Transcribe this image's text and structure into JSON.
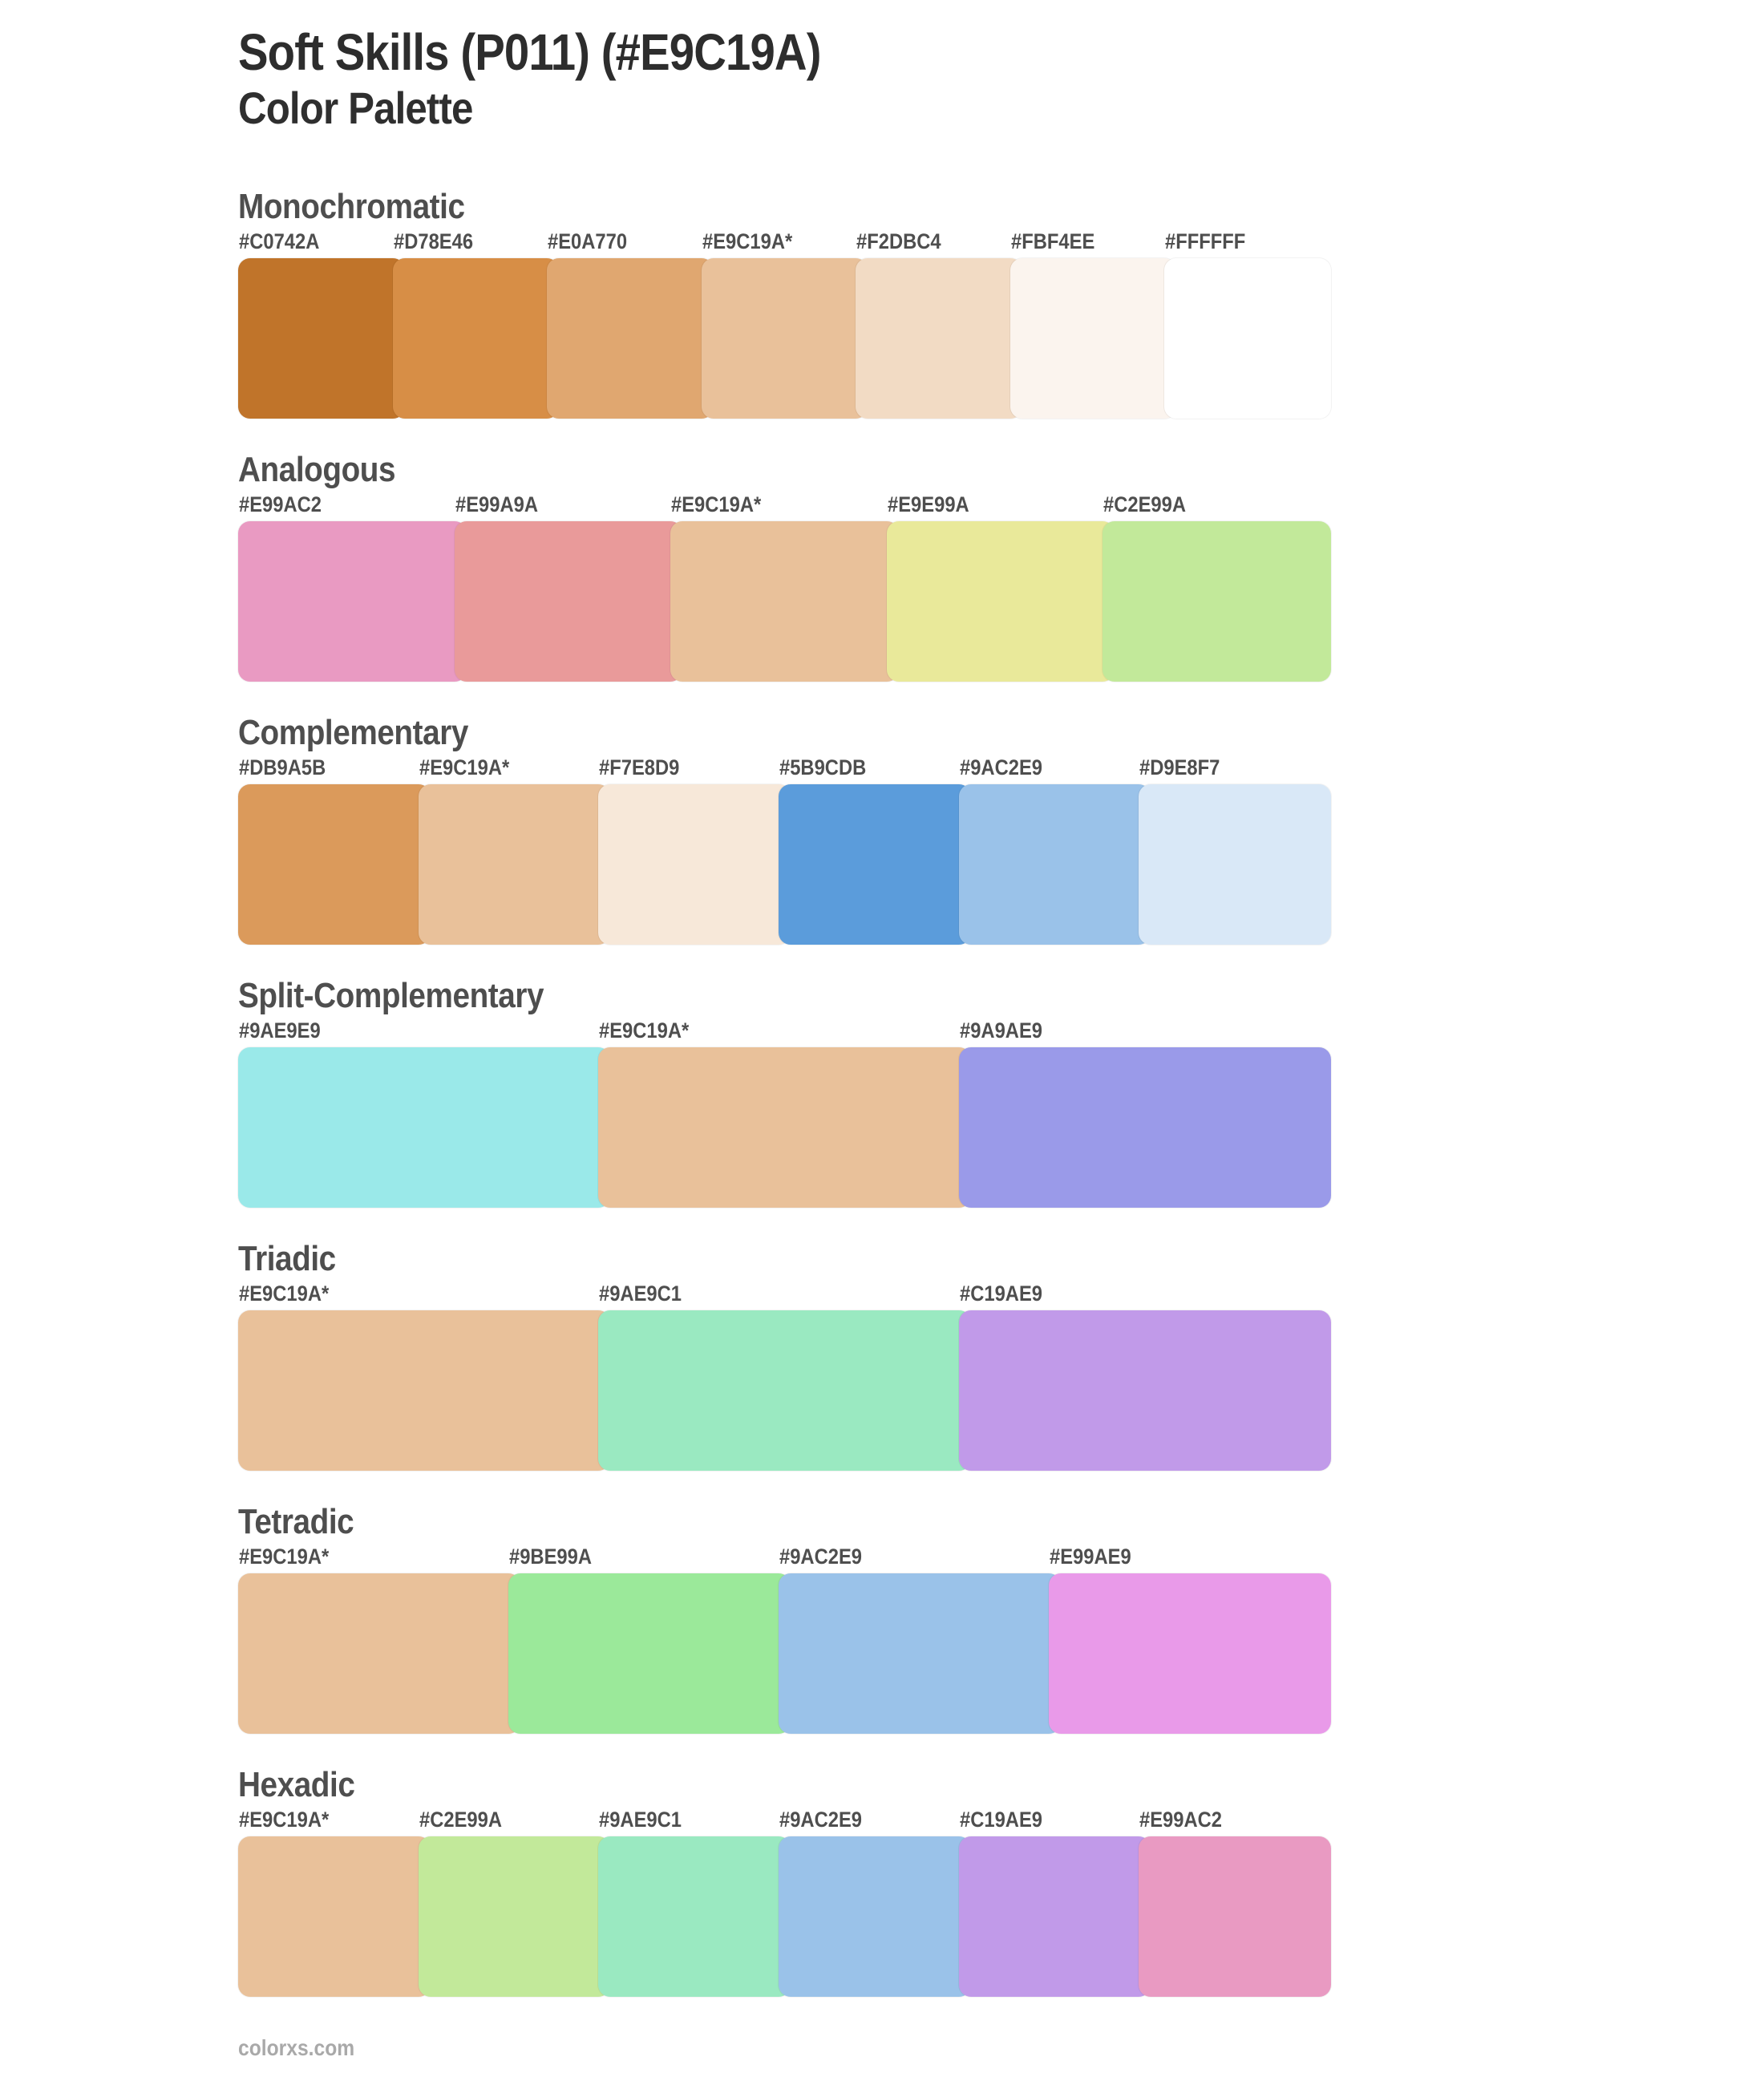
{
  "page": {
    "title": "Soft Skills (P011) (#E9C19A)",
    "subtitle": "Color Palette",
    "footer": "colorxs.com",
    "base_color": "#E9C19A"
  },
  "sections": [
    {
      "name": "Monochromatic",
      "swatches": [
        {
          "label": "#C0742A",
          "color": "#C0742A"
        },
        {
          "label": "#D78E46",
          "color": "#D78E46"
        },
        {
          "label": "#E0A770",
          "color": "#E0A770"
        },
        {
          "label": "#E9C19A*",
          "color": "#E9C19A"
        },
        {
          "label": "#F2DBC4",
          "color": "#F2DBC4"
        },
        {
          "label": "#FBF4EE",
          "color": "#FBF4EE"
        },
        {
          "label": "#FFFFFF",
          "color": "#FFFFFF"
        }
      ]
    },
    {
      "name": "Analogous",
      "swatches": [
        {
          "label": "#E99AC2",
          "color": "#E99AC2"
        },
        {
          "label": "#E99A9A",
          "color": "#E99A9A"
        },
        {
          "label": "#E9C19A*",
          "color": "#E9C19A"
        },
        {
          "label": "#E9E99A",
          "color": "#E9E99A"
        },
        {
          "label": "#C2E99A",
          "color": "#C2E99A"
        }
      ]
    },
    {
      "name": "Complementary",
      "swatches": [
        {
          "label": "#DB9A5B",
          "color": "#DB9A5B"
        },
        {
          "label": "#E9C19A*",
          "color": "#E9C19A"
        },
        {
          "label": "#F7E8D9",
          "color": "#F7E8D9"
        },
        {
          "label": "#5B9CDB",
          "color": "#5B9CDB"
        },
        {
          "label": "#9AC2E9",
          "color": "#9AC2E9"
        },
        {
          "label": "#D9E8F7",
          "color": "#D9E8F7"
        }
      ]
    },
    {
      "name": "Split-Complementary",
      "swatches": [
        {
          "label": "#9AE9E9",
          "color": "#9AE9E9"
        },
        {
          "label": "#E9C19A*",
          "color": "#E9C19A"
        },
        {
          "label": "#9A9AE9",
          "color": "#9A9AE9"
        }
      ]
    },
    {
      "name": "Triadic",
      "swatches": [
        {
          "label": "#E9C19A*",
          "color": "#E9C19A"
        },
        {
          "label": "#9AE9C1",
          "color": "#9AE9C1"
        },
        {
          "label": "#C19AE9",
          "color": "#C19AE9"
        }
      ]
    },
    {
      "name": "Tetradic",
      "swatches": [
        {
          "label": "#E9C19A*",
          "color": "#E9C19A"
        },
        {
          "label": "#9BE99A",
          "color": "#9BE99A"
        },
        {
          "label": "#9AC2E9",
          "color": "#9AC2E9"
        },
        {
          "label": "#E99AE9",
          "color": "#E99AE9"
        }
      ]
    },
    {
      "name": "Hexadic",
      "swatches": [
        {
          "label": "#E9C19A*",
          "color": "#E9C19A"
        },
        {
          "label": "#C2E99A",
          "color": "#C2E99A"
        },
        {
          "label": "#9AE9C1",
          "color": "#9AE9C1"
        },
        {
          "label": "#9AC2E9",
          "color": "#9AC2E9"
        },
        {
          "label": "#C19AE9",
          "color": "#C19AE9"
        },
        {
          "label": "#E99AC2",
          "color": "#E99AC2"
        }
      ]
    }
  ]
}
